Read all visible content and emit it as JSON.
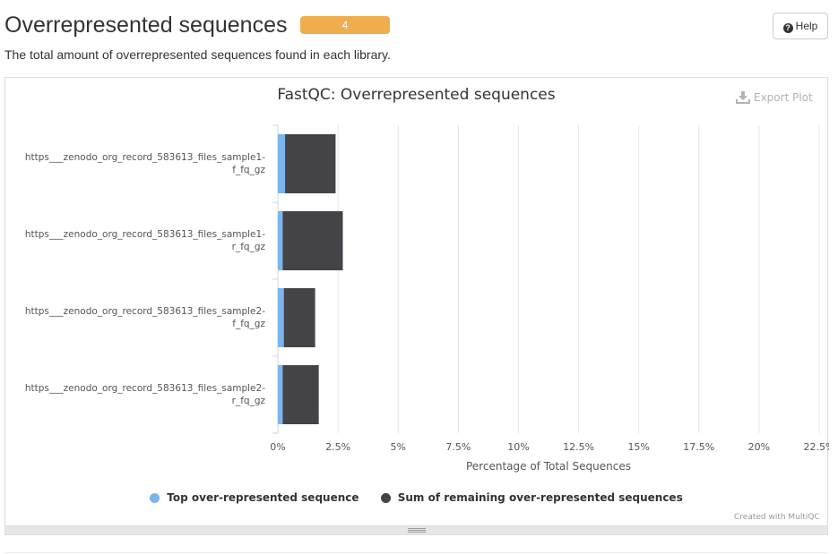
{
  "section": {
    "title": "Overrepresented sequences",
    "badge": "4",
    "help_label": "Help",
    "description": "The total amount of overrepresented sequences found in each library."
  },
  "plot": {
    "export_label": "Export Plot",
    "credit": "Created with MultiQC"
  },
  "colors": {
    "top": "#7cb5ec",
    "remaining": "#434348",
    "badge": "#f0ad4e",
    "grid": "#e6e6e6"
  },
  "chart_data": {
    "type": "bar",
    "orientation": "horizontal",
    "stacked": true,
    "title": "FastQC: Overrepresented sequences",
    "xlabel": "Percentage of Total Sequences",
    "ylabel": "",
    "xlim": [
      0,
      22.5
    ],
    "xticks": [
      "0%",
      "2.5%",
      "5%",
      "7.5%",
      "10%",
      "12.5%",
      "15%",
      "17.5%",
      "20%",
      "22.5%"
    ],
    "categories": [
      "https___zenodo_org_record_583613_files_sample1-f_fq_gz",
      "https___zenodo_org_record_583613_files_sample1-r_fq_gz",
      "https___zenodo_org_record_583613_files_sample2-f_fq_gz",
      "https___zenodo_org_record_583613_files_sample2-r_fq_gz"
    ],
    "category_lines": [
      [
        "https___zenodo_org_record_583613_files_sample1-",
        "f_fq_gz"
      ],
      [
        "https___zenodo_org_record_583613_files_sample1-",
        "r_fq_gz"
      ],
      [
        "https___zenodo_org_record_583613_files_sample2-",
        "f_fq_gz"
      ],
      [
        "https___zenodo_org_record_583613_files_sample2-",
        "r_fq_gz"
      ]
    ],
    "series": [
      {
        "name": "Top over-represented sequence",
        "values": [
          0.3,
          0.2,
          0.25,
          0.2
        ]
      },
      {
        "name": "Sum of remaining over-represented sequences",
        "values": [
          2.1,
          2.5,
          1.3,
          1.5
        ]
      }
    ],
    "grid": true,
    "legend_position": "bottom"
  }
}
